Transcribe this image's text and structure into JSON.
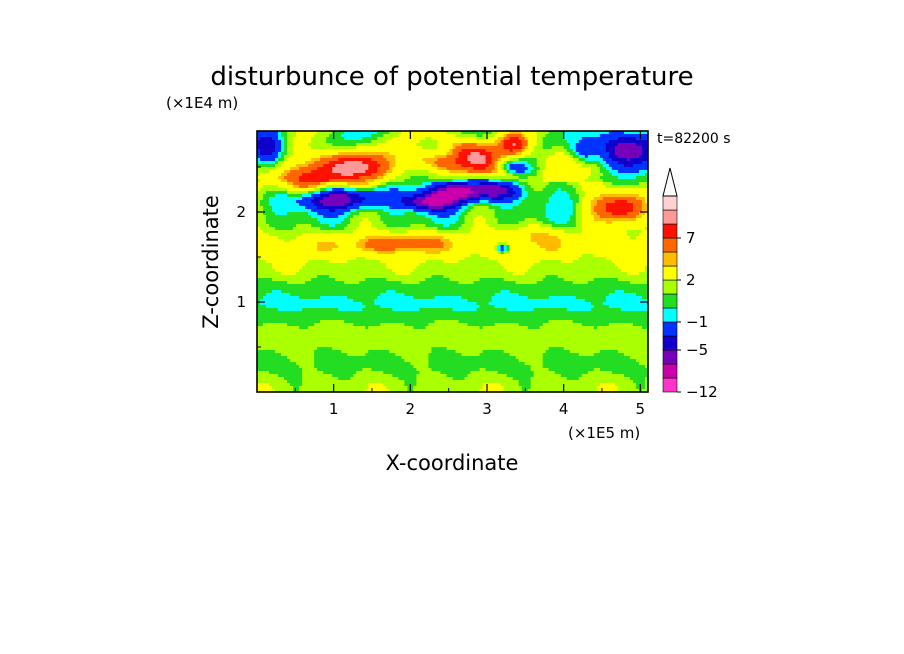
{
  "chart_data": {
    "type": "heatmap",
    "title": "disturbunce of potential temperature",
    "xlabel": "X-coordinate",
    "ylabel": "Z-coordinate",
    "x_unit": "(×1E5 m)",
    "y_unit": "(×1E4 m)",
    "time_label": "t=82200 s",
    "xlim": [
      0,
      5.1
    ],
    "ylim": [
      0,
      2.9
    ],
    "x_ticks": [
      1,
      2,
      3,
      4,
      5
    ],
    "y_ticks": [
      1,
      2
    ],
    "x_tick_labels": [
      "1",
      "2",
      "3",
      "4",
      "5"
    ],
    "y_tick_labels": [
      "1",
      "2"
    ],
    "colorbar": {
      "levels": [
        -12,
        -10,
        -7,
        -5,
        -3,
        -1,
        0,
        1,
        2,
        4,
        5,
        7,
        9,
        11
      ],
      "labels": [
        "7",
        "2",
        "−1",
        "−5",
        "−12"
      ],
      "label_values": [
        7,
        2,
        -1,
        -5,
        -12
      ],
      "colors": [
        "#ff33cc",
        "#cc00aa",
        "#7700bb",
        "#1100cc",
        "#0033ff",
        "#00ffff",
        "#22dd22",
        "#aaff00",
        "#ffff00",
        "#ffbb00",
        "#ff6600",
        "#ff1100",
        "#ff9999",
        "#ffd0d0"
      ],
      "extend": "max"
    },
    "field": {
      "background": 0.8,
      "bands": [
        {
          "z": 0.1,
          "value": 1.6,
          "amp": 0.9
        },
        {
          "z": 0.3,
          "value": 0.4,
          "amp": 0.6
        },
        {
          "z": 0.45,
          "value": 1.2,
          "amp": 0.8
        },
        {
          "z": 0.65,
          "value": 2.0,
          "amp": 0.8
        },
        {
          "z": 0.8,
          "value": 0.5,
          "amp": 0.5
        },
        {
          "z": 1.0,
          "value": -0.6,
          "amp": 0.35
        },
        {
          "z": 1.15,
          "value": 0.6,
          "amp": 0.6
        },
        {
          "z": 1.35,
          "value": 1.8,
          "amp": 1.0
        },
        {
          "z": 1.65,
          "value": 3.0,
          "amp": 1.4
        },
        {
          "z": 1.9,
          "value": 0.5,
          "amp": 1.8
        }
      ],
      "blobs": [
        {
          "x": 1.2,
          "z": 2.5,
          "value": 9,
          "rx": 0.55,
          "rz": 0.18,
          "tilt": 0.25
        },
        {
          "x": 0.6,
          "z": 2.35,
          "value": 6,
          "rx": 0.4,
          "rz": 0.15,
          "tilt": 0.2
        },
        {
          "x": 1.1,
          "z": 2.15,
          "value": -7,
          "rx": 0.55,
          "rz": 0.12,
          "tilt": 0.3
        },
        {
          "x": 0.15,
          "z": 2.7,
          "value": -6,
          "rx": 0.2,
          "rz": 0.18,
          "tilt": 0
        },
        {
          "x": 2.2,
          "z": 2.1,
          "value": -6,
          "rx": 0.3,
          "rz": 0.1,
          "tilt": 0.9
        },
        {
          "x": 2.55,
          "z": 2.2,
          "value": -8,
          "rx": 0.4,
          "rz": 0.1,
          "tilt": 0.85
        },
        {
          "x": 3.05,
          "z": 2.25,
          "value": -7,
          "rx": 0.35,
          "rz": 0.12,
          "tilt": 0.6
        },
        {
          "x": 3.3,
          "z": 2.5,
          "value": -5,
          "rx": 0.25,
          "rz": 0.1,
          "tilt": 0.5
        },
        {
          "x": 2.9,
          "z": 2.6,
          "value": 8,
          "rx": 0.3,
          "rz": 0.25,
          "tilt": 0.4
        },
        {
          "x": 3.35,
          "z": 2.75,
          "value": 7,
          "rx": 0.2,
          "rz": 0.12,
          "tilt": 0
        },
        {
          "x": 2.4,
          "z": 2.55,
          "value": 5,
          "rx": 0.35,
          "rz": 0.15,
          "tilt": 0.7
        },
        {
          "x": 4.2,
          "z": 2.6,
          "value": 4,
          "rx": 0.5,
          "rz": 0.25,
          "tilt": -0.3
        },
        {
          "x": 4.75,
          "z": 2.7,
          "value": -9,
          "rx": 0.4,
          "rz": 0.2,
          "tilt": 0
        },
        {
          "x": 4.25,
          "z": 2.65,
          "value": -5,
          "rx": 0.2,
          "rz": 0.15,
          "tilt": 0
        },
        {
          "x": 4.75,
          "z": 2.05,
          "value": 8,
          "rx": 0.35,
          "rz": 0.18,
          "tilt": 0
        },
        {
          "x": 3.2,
          "z": 1.6,
          "value": -5,
          "rx": 0.08,
          "rz": 0.05,
          "tilt": 0
        },
        {
          "x": 1.8,
          "z": 1.65,
          "value": 4,
          "rx": 0.6,
          "rz": 0.1,
          "tilt": 0.1
        },
        {
          "x": 3.6,
          "z": 1.75,
          "value": 2,
          "rx": 0.4,
          "rz": 0.12,
          "tilt": 0
        }
      ]
    }
  }
}
